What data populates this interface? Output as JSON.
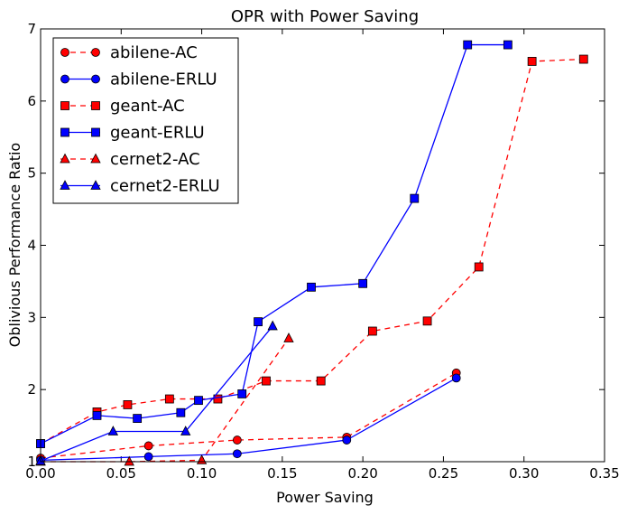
{
  "chart_data": {
    "type": "line",
    "title": "OPR with Power Saving",
    "xlabel": "Power Saving",
    "ylabel": "Oblivious Performance Ratio",
    "xlim": [
      0,
      0.35
    ],
    "ylim": [
      1,
      7
    ],
    "xticks": [
      0.0,
      0.05,
      0.1,
      0.15,
      0.2,
      0.25,
      0.3,
      0.35
    ],
    "xtick_labels": [
      "0.00",
      "0.05",
      "0.10",
      "0.15",
      "0.20",
      "0.25",
      "0.30",
      "0.35"
    ],
    "yticks": [
      1,
      2,
      3,
      4,
      5,
      6,
      7
    ],
    "ytick_labels": [
      "1",
      "2",
      "3",
      "4",
      "5",
      "6",
      "7"
    ],
    "grid": false,
    "legend_position": "top-left",
    "series": [
      {
        "name": "abilene-AC",
        "color": "#ff0000",
        "dash": "dashed",
        "marker": "circle",
        "x": [
          0.0,
          0.067,
          0.122,
          0.19,
          0.258
        ],
        "y": [
          1.05,
          1.22,
          1.3,
          1.34,
          2.23
        ]
      },
      {
        "name": "abilene-ERLU",
        "color": "#0000ff",
        "dash": "solid",
        "marker": "circle",
        "x": [
          0.0,
          0.067,
          0.122,
          0.19,
          0.258
        ],
        "y": [
          1.02,
          1.07,
          1.11,
          1.3,
          2.16
        ]
      },
      {
        "name": "geant-AC",
        "color": "#ff0000",
        "dash": "dashed",
        "marker": "square",
        "x": [
          0.0,
          0.035,
          0.054,
          0.08,
          0.11,
          0.14,
          0.174,
          0.206,
          0.24,
          0.272,
          0.305,
          0.337
        ],
        "y": [
          1.25,
          1.69,
          1.79,
          1.87,
          1.87,
          2.12,
          2.12,
          2.81,
          2.95,
          3.7,
          6.55,
          6.58
        ]
      },
      {
        "name": "geant-ERLU",
        "color": "#0000ff",
        "dash": "solid",
        "marker": "square",
        "x": [
          0.0,
          0.035,
          0.06,
          0.087,
          0.098,
          0.125,
          0.135,
          0.168,
          0.2,
          0.232,
          0.265,
          0.29
        ],
        "y": [
          1.25,
          1.64,
          1.6,
          1.68,
          1.85,
          1.94,
          2.94,
          3.42,
          3.47,
          4.65,
          6.78,
          6.78
        ]
      },
      {
        "name": "cernet2-AC",
        "color": "#ff0000",
        "dash": "dashed",
        "marker": "triangle",
        "x": [
          0.0,
          0.055,
          0.1,
          0.154
        ],
        "y": [
          1.0,
          1.0,
          1.02,
          2.71
        ]
      },
      {
        "name": "cernet2-ERLU",
        "color": "#0000ff",
        "dash": "solid",
        "marker": "triangle",
        "x": [
          0.0,
          0.045,
          0.09,
          0.144
        ],
        "y": [
          1.01,
          1.42,
          1.42,
          2.88
        ]
      }
    ]
  }
}
